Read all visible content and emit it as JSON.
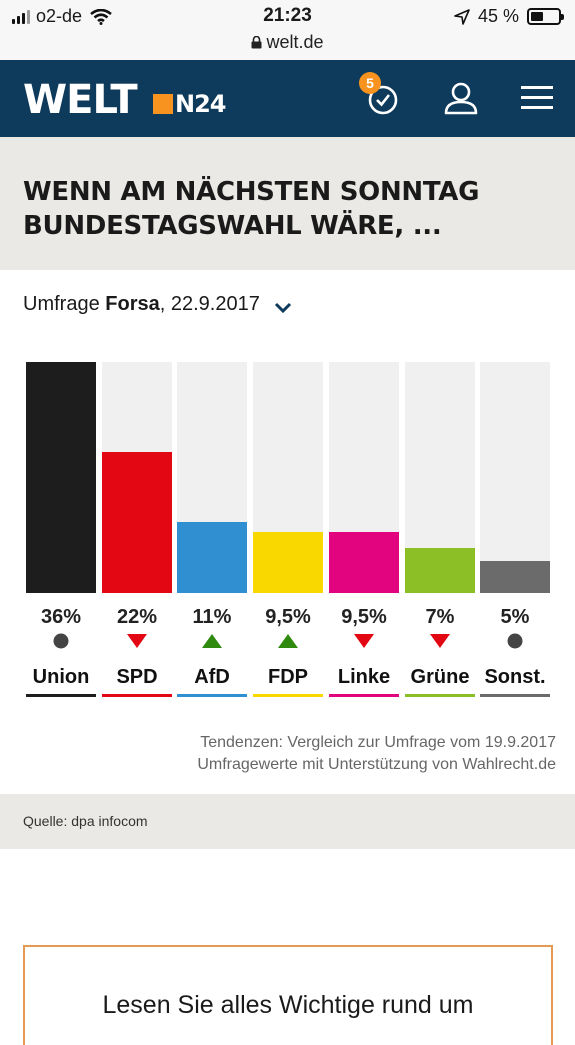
{
  "status_bar": {
    "carrier": "o2-de",
    "time": "21:23",
    "battery": "45 %",
    "battery_level": 0.45,
    "url": "welt.de"
  },
  "header": {
    "logo": "WELT",
    "logo_sub": "N24",
    "notification_count": "5",
    "brand_color": "#0e3a5b",
    "accent_color": "#f7931e"
  },
  "title": "WENN AM NÄCHSTEN SONNTAG BUNDESTAGSWAHL WÄRE, ...",
  "survey": {
    "prefix": "Umfrage",
    "institute": "Forsa",
    "date": ", 22.9.2017"
  },
  "chart_data": {
    "type": "bar",
    "categories": [
      "Union",
      "SPD",
      "AfD",
      "FDP",
      "Linke",
      "Grüne",
      "Sonst."
    ],
    "values": [
      36,
      22,
      11,
      9.5,
      9.5,
      7,
      5
    ],
    "labels": [
      "36%",
      "22%",
      "11%",
      "9,5%",
      "9,5%",
      "7%",
      "5%"
    ],
    "trends": [
      "neutral",
      "down",
      "up",
      "up",
      "down",
      "down",
      "neutral"
    ],
    "colors": [
      "#1d1d1d",
      "#e30613",
      "#2f8fd1",
      "#f9d800",
      "#e2037f",
      "#8cbf26",
      "#6b6b6b"
    ],
    "ylim": [
      0,
      36
    ]
  },
  "tendency_note": "Tendenzen: Vergleich zur Umfrage vom 19.9.2017",
  "support_note": "Umfragewerte mit Unterstützung von Wahlrecht.de",
  "source": "Quelle: dpa infocom",
  "promo": "Lesen Sie alles Wichtige rund um"
}
